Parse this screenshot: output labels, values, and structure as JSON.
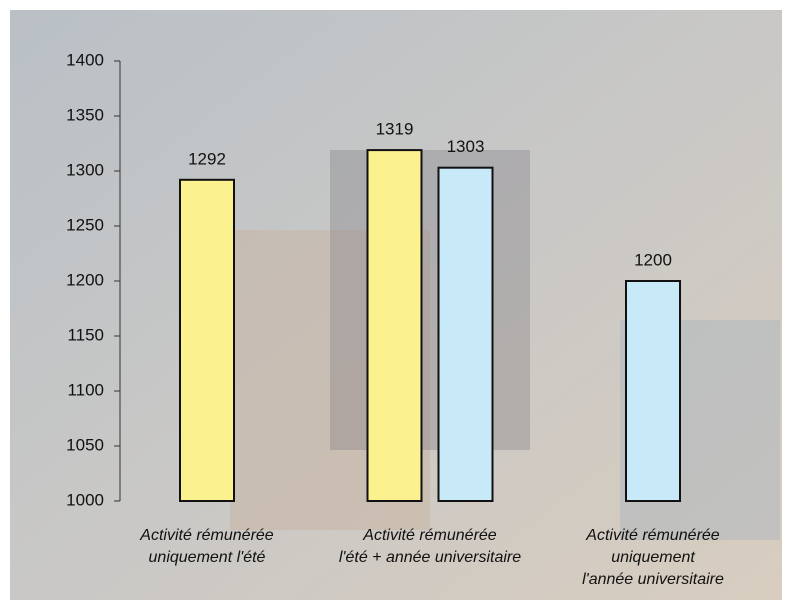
{
  "chart_data": {
    "type": "bar",
    "categories": [
      [
        "Activité rémunérée",
        "uniquement l'été"
      ],
      [
        "Activité rémunérée",
        "l'été + année universitaire"
      ],
      [
        "Activité rémunérée",
        "uniquement",
        "l'année universitaire"
      ]
    ],
    "series": [
      {
        "color": "#fcf18f",
        "values": [
          1292,
          1319,
          null
        ]
      },
      {
        "color": "#c8e9f8",
        "values": [
          null,
          1303,
          1200
        ]
      }
    ],
    "ylim": [
      1000,
      1400
    ],
    "yticks": [
      1000,
      1050,
      1100,
      1150,
      1200,
      1250,
      1300,
      1350,
      1400
    ]
  }
}
